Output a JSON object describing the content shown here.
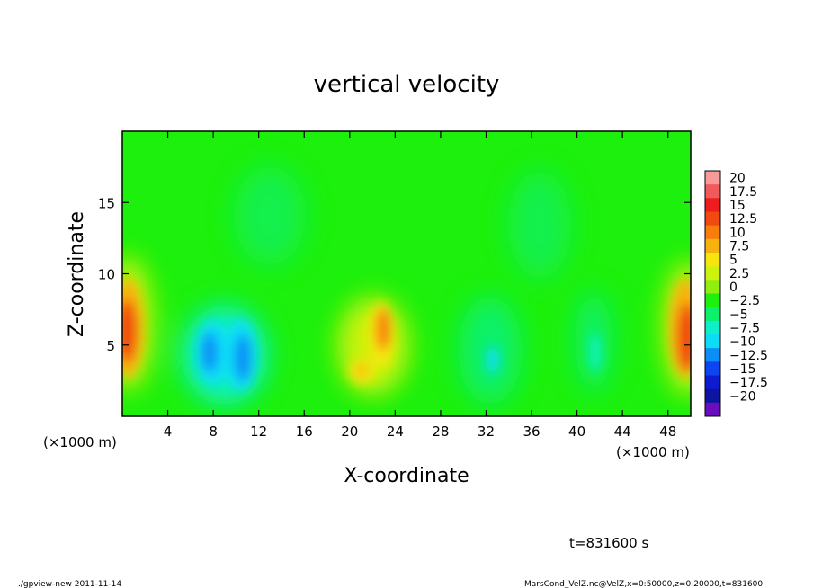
{
  "chart_data": {
    "type": "heatmap",
    "title": "vertical velocity",
    "xlabel": "X-coordinate",
    "ylabel": "Z-coordinate",
    "x_unit_label_left": "(×1000 m)",
    "x_unit_label_right": "(×1000 m)",
    "xlim": [
      0,
      50
    ],
    "ylim": [
      0,
      20
    ],
    "x_ticks": [
      "4",
      "8",
      "12",
      "16",
      "20",
      "24",
      "28",
      "32",
      "36",
      "40",
      "44",
      "48"
    ],
    "y_ticks": [
      "5",
      "10",
      "15"
    ],
    "x_tick_values": [
      4,
      8,
      12,
      16,
      20,
      24,
      28,
      32,
      36,
      40,
      44,
      48
    ],
    "y_tick_values": [
      5,
      10,
      15
    ],
    "colorbar": {
      "labels": [
        "20",
        "17.5",
        "15",
        "12.5",
        "10",
        "7.5",
        "5",
        "2.5",
        "0",
        "−2.5",
        "−5",
        "−7.5",
        "−10",
        "−12.5",
        "−15",
        "−17.5",
        "−20"
      ],
      "colors": [
        "#f79a9a",
        "#f25a5a",
        "#ee1c1c",
        "#f04a10",
        "#f77d0d",
        "#f7b30d",
        "#f7e60d",
        "#cdf20d",
        "#8ef00c",
        "#1cf00c",
        "#0df06a",
        "#0df0c8",
        "#0ddcf7",
        "#0d8ef7",
        "#0d46f0",
        "#0d1cd0",
        "#0d14a0",
        "#6a0dbe"
      ]
    },
    "features": [
      {
        "kind": "updraft",
        "x_center": 0.8,
        "z_center": 5.5,
        "peak": 12.5
      },
      {
        "kind": "downdraft",
        "x_center": 8.0,
        "z_center": 4.5,
        "peak": -12.5
      },
      {
        "kind": "downdraft",
        "x_center": 10.5,
        "z_center": 4.0,
        "peak": -12.5
      },
      {
        "kind": "updraft",
        "x_center": 22.5,
        "z_center": 6.0,
        "peak": 12.5
      },
      {
        "kind": "updraft",
        "x_center": 21.0,
        "z_center": 3.5,
        "peak": 8.0
      },
      {
        "kind": "downdraft",
        "x_center": 32.5,
        "z_center": 4.2,
        "peak": -8.0
      },
      {
        "kind": "updraft",
        "x_center": 49.0,
        "z_center": 5.0,
        "peak": 12.5
      }
    ]
  },
  "annotations": {
    "time_label": "t=831600 s",
    "footer_left": "./gpview-new   2011-11-14",
    "footer_right": "MarsCond_VelZ.nc@VelZ,x=0:50000,z=0:20000,t=831600"
  }
}
